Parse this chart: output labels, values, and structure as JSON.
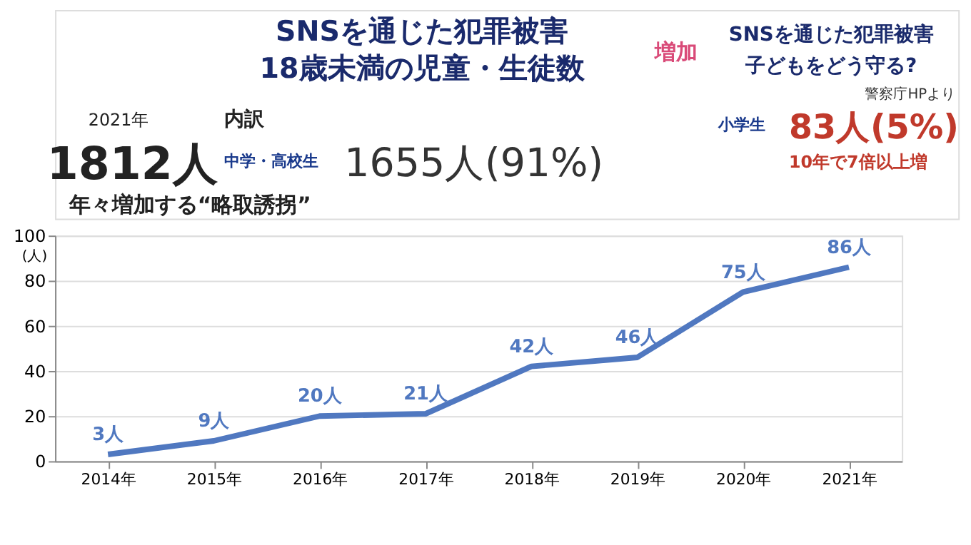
{
  "chart_data": {
    "type": "line",
    "title": "SNSを通じた犯罪被害",
    "subtitle": "18歳未満の児童・生徒数",
    "annotations": [
      "増加",
      "SNSを通じた犯罪被害",
      "子どもをどう守る?",
      "警察庁HPより",
      "2021年",
      "1812人",
      "内訳",
      "中学・高校生",
      "1655人(91%)",
      "小学生",
      "83人(5%)",
      "10年で7倍以上増",
      "年々増加する“略取誘拐”"
    ],
    "categories": [
      "2014年",
      "2015年",
      "2016年",
      "2017年",
      "2018年",
      "2019年",
      "2020年",
      "2021年"
    ],
    "series": [
      {
        "color": "#5078c0",
        "values": [
          3,
          9,
          20,
          21,
          42,
          46,
          75,
          86
        ],
        "value_labels": [
          "3人",
          "9人",
          "20人",
          "21人",
          "42人",
          "46人",
          "75人",
          "86人"
        ]
      }
    ],
    "ylabel": "(人)",
    "ylim": [
      0,
      100
    ],
    "yticks": [
      0,
      20,
      40,
      60,
      80,
      100
    ],
    "grid": "y",
    "marker": "none",
    "line_style": "solid"
  }
}
